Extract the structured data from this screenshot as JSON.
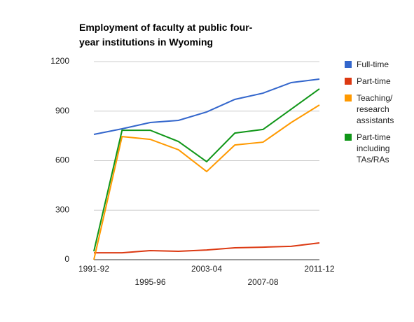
{
  "chart_data": {
    "type": "line",
    "title": "Employment of faculty at public four-year institutions in Wyoming",
    "categories": [
      "1991-92",
      null,
      "1995-96",
      null,
      "2003-04",
      null,
      "2007-08",
      null,
      "2011-12"
    ],
    "series": [
      {
        "name": "Full-time",
        "color": "#3366cc",
        "values": [
          759,
          793,
          831,
          844,
          895,
          971,
          1009,
          1073,
          1094
        ]
      },
      {
        "name": "Part-time",
        "color": "#dc3912",
        "values": [
          42,
          42,
          55,
          51,
          59,
          72,
          76,
          81,
          102
        ]
      },
      {
        "name": "Teaching/ research assistants",
        "color": "#ff9900",
        "values": [
          0,
          746,
          729,
          666,
          534,
          695,
          712,
          831,
          937
        ]
      },
      {
        "name": "Part-time including TAs/RAs",
        "color": "#109618",
        "values": [
          51,
          784,
          784,
          716,
          594,
          767,
          789,
          912,
          1035
        ]
      }
    ],
    "ylim": [
      0,
      1200
    ],
    "yticks": [
      0,
      300,
      600,
      900,
      1200
    ],
    "grid": true,
    "legend": "right"
  }
}
